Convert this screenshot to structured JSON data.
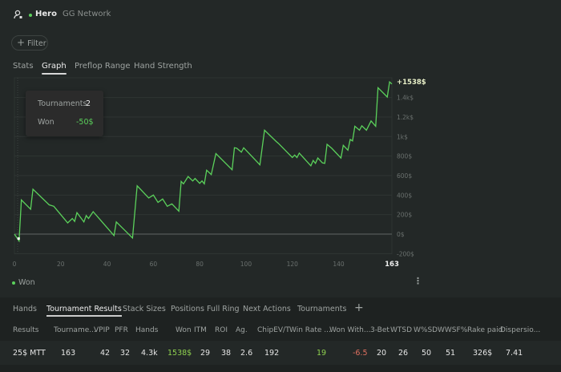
{
  "header": {
    "icon": "user-settings-icon",
    "player": "Hero",
    "network": "GG Network",
    "status_color": "#5bd15b"
  },
  "filter": {
    "label": "Filter",
    "icon": "plus-icon"
  },
  "tabs": [
    {
      "label": "Stats"
    },
    {
      "label": "Graph",
      "active": true
    },
    {
      "label": "Preflop Range"
    },
    {
      "label": "Hand Strength"
    }
  ],
  "tooltip": {
    "tournaments_label": "Tournaments",
    "tournaments_value": "2",
    "won_label": "Won",
    "won_value": "-50$"
  },
  "chart_data": {
    "type": "line",
    "x_ticks": [
      "0",
      "20",
      "40",
      "60",
      "80",
      "100",
      "120",
      "140"
    ],
    "x_last_label": "163",
    "xlim": [
      0,
      163
    ],
    "y_ticks": [
      "-200$",
      "0$",
      "200$",
      "400$",
      "600$",
      "800$",
      "1k$",
      "1.2k$",
      "1.4k$"
    ],
    "ylim": [
      -200,
      1600
    ],
    "end_label": "+1538$",
    "grid": true,
    "line_color": "#5bd15b",
    "series": [
      {
        "name": "Won",
        "points": [
          [
            0,
            0
          ],
          [
            2,
            -70
          ],
          [
            3,
            350
          ],
          [
            7,
            255
          ],
          [
            8,
            460
          ],
          [
            15,
            300
          ],
          [
            17,
            285
          ],
          [
            23,
            115
          ],
          [
            25,
            160
          ],
          [
            26,
            130
          ],
          [
            27,
            220
          ],
          [
            30,
            125
          ],
          [
            31,
            190
          ],
          [
            32,
            160
          ],
          [
            34,
            230
          ],
          [
            43,
            -15
          ],
          [
            44,
            125
          ],
          [
            51,
            -40
          ],
          [
            53,
            495
          ],
          [
            58,
            370
          ],
          [
            60,
            400
          ],
          [
            62,
            325
          ],
          [
            64,
            360
          ],
          [
            66,
            285
          ],
          [
            68,
            310
          ],
          [
            71,
            235
          ],
          [
            72,
            540
          ],
          [
            73,
            515
          ],
          [
            75,
            590
          ],
          [
            77,
            545
          ],
          [
            78,
            570
          ],
          [
            80,
            520
          ],
          [
            81,
            545
          ],
          [
            82,
            515
          ],
          [
            83,
            655
          ],
          [
            85,
            610
          ],
          [
            87,
            825
          ],
          [
            94,
            660
          ],
          [
            95,
            885
          ],
          [
            96,
            880
          ],
          [
            98,
            840
          ],
          [
            99,
            885
          ],
          [
            106,
            710
          ],
          [
            108,
            1065
          ],
          [
            113,
            950
          ],
          [
            114,
            930
          ],
          [
            120,
            785
          ],
          [
            121,
            810
          ],
          [
            122,
            785
          ],
          [
            123,
            830
          ],
          [
            128,
            700
          ],
          [
            129,
            755
          ],
          [
            130,
            725
          ],
          [
            131,
            780
          ],
          [
            133,
            730
          ],
          [
            134,
            725
          ],
          [
            135,
            920
          ],
          [
            137,
            880
          ],
          [
            141,
            780
          ],
          [
            142,
            910
          ],
          [
            144,
            860
          ],
          [
            145,
            970
          ],
          [
            146,
            955
          ],
          [
            147,
            1105
          ],
          [
            149,
            1065
          ],
          [
            150,
            1110
          ],
          [
            152,
            1065
          ],
          [
            154,
            1160
          ],
          [
            156,
            1105
          ],
          [
            157,
            1500
          ],
          [
            161,
            1405
          ],
          [
            162,
            1560
          ],
          [
            163,
            1538
          ]
        ]
      }
    ]
  },
  "legend": {
    "label": "Won"
  },
  "bottom_tabs": [
    {
      "label": "Hands"
    },
    {
      "label": "Tournament Results",
      "active": true
    },
    {
      "label": "Stack Sizes"
    },
    {
      "label": "Positions Full Ring"
    },
    {
      "label": "Next Actions"
    },
    {
      "label": "Tournaments"
    }
  ],
  "columns": [
    "Results",
    "Tourname...",
    "VPIP",
    "PFR",
    "Hands",
    "Won",
    "ITM",
    "ROI",
    "Ag.",
    "ChipEV/T",
    "Win Rate ...",
    "Won With...",
    "3-Bet",
    "WTSD",
    "W%SD",
    "WWSF%",
    "Rake paid",
    "Dispersio..."
  ],
  "row": [
    "25$ MTT",
    "163",
    "42",
    "32",
    "4.3k",
    "1538$",
    "29",
    "38",
    "2.6",
    "192",
    "19",
    "-6.5",
    "20",
    "26",
    "50",
    "51",
    "326$",
    "7.41"
  ],
  "colors": {
    "positive": "#8fd14f",
    "negative": "#e07060"
  }
}
